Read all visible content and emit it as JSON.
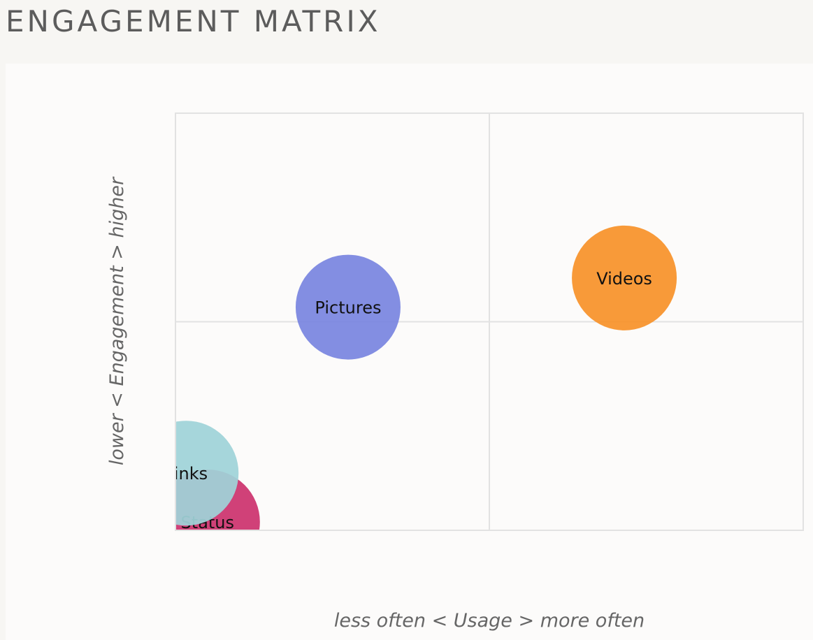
{
  "page": {
    "title": "ENGAGEMENT MATRIX"
  },
  "chart_data": {
    "type": "scatter",
    "subtype": "bubble",
    "xlabel": "less often < Usage > more often",
    "ylabel": "lower < Engagement > higher",
    "xlim": [
      0,
      1
    ],
    "ylim": [
      0,
      1
    ],
    "grid": true,
    "quadrant_lines": {
      "x": 0.5,
      "y": 0.5
    },
    "bubbles": [
      {
        "name": "Videos",
        "x": 0.715,
        "y": 0.605,
        "color": "#f7922a"
      },
      {
        "name": "Pictures",
        "x": 0.275,
        "y": 0.535,
        "color": "#7a85e0"
      },
      {
        "name": "Links",
        "x": 0.017,
        "y": 0.137,
        "color": "#9fd3d8"
      },
      {
        "name": "Status",
        "x": 0.051,
        "y": 0.02,
        "color": "#cc336e"
      }
    ]
  }
}
